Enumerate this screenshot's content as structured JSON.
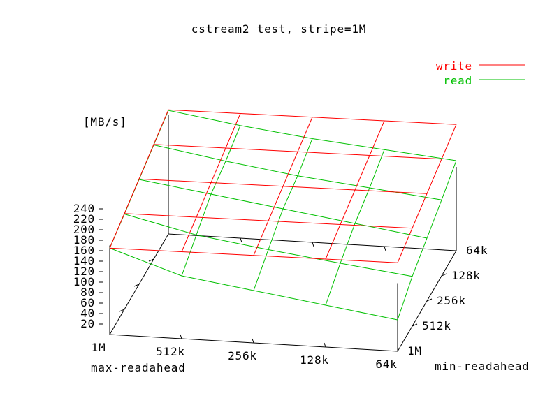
{
  "chart_data": {
    "type": "surface",
    "title": "cstream2 test, stripe=1M",
    "zlabel": "[MB/s]",
    "xlabel": "max-readahead",
    "ylabel": "min-readahead",
    "x_ticks": [
      "1M",
      "512k",
      "256k",
      "128k",
      "64k"
    ],
    "y_ticks": [
      "1M",
      "512k",
      "256k",
      "128k",
      "64k"
    ],
    "z_ticks": [
      "20",
      "40",
      "60",
      "80",
      "100",
      "120",
      "140",
      "160",
      "180",
      "200",
      "220",
      "240"
    ],
    "zlim": [
      0,
      240
    ],
    "legend_position": "top-right",
    "series": [
      {
        "name": "write",
        "color": "#ff0000",
        "z": [
          [
            165,
            166,
            167,
            168,
            169
          ],
          [
            183,
            184,
            185,
            186,
            187
          ],
          [
            201,
            202,
            203,
            204,
            205
          ],
          [
            219,
            220,
            221,
            222,
            223
          ],
          [
            237,
            238,
            239,
            240,
            241
          ]
        ]
      },
      {
        "name": "read",
        "color": "#00c000",
        "z": [
          [
            165,
            120,
            100,
            80,
            60
          ],
          [
            182,
            150,
            130,
            112,
            95
          ],
          [
            200,
            180,
            160,
            140,
            120
          ],
          [
            218,
            195,
            175,
            160,
            145
          ],
          [
            236,
            215,
            198,
            185,
            172
          ]
        ]
      }
    ]
  }
}
